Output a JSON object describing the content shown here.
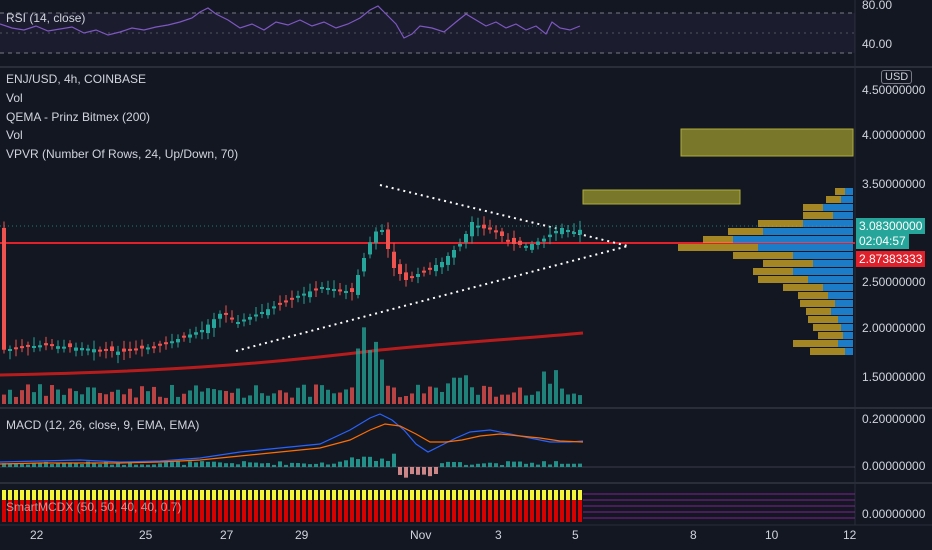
{
  "rsi": {
    "label": "RSI (14, close)",
    "scale": [
      "80.00",
      "40.00"
    ]
  },
  "main": {
    "symbol_line": "ENJ/USD, 4h, COINBASE",
    "indicators": [
      "Vol",
      "QEMA - Prinz Bitmex (200)",
      "Vol",
      "VPVR (Number Of Rows, 24, Up/Down, 70)"
    ],
    "currency_button": "USD",
    "price_scale": [
      "4.50000000",
      "4.00000000",
      "3.50000000",
      "2.50000000",
      "2.00000000",
      "1.50000000"
    ],
    "last_price": "3.08300000",
    "countdown": "02:04:57",
    "line_price": "2.87383333"
  },
  "macd": {
    "label": "MACD (12, 26, close, 9, EMA, EMA)",
    "scale": [
      "0.20000000",
      "0.00000000"
    ]
  },
  "smi": {
    "label": "SmartMCDX (50, 50, 40, 40, 0.7)",
    "scale": [
      "0.00000000"
    ]
  },
  "time_axis": [
    "22",
    "25",
    "27",
    "29",
    "Nov",
    "3",
    "5",
    "8",
    "10",
    "12"
  ],
  "colors": {
    "bg": "#131722",
    "up": "#26a69a",
    "down": "#ef5350",
    "red_line": "#e0202a",
    "ema": "#b71c1c",
    "rsi": "#7e57c2",
    "macd": "#2962ff",
    "signal": "#ff6d00",
    "vpvr_up": "#2196f3",
    "vpvr_down": "#c9a227",
    "gold_box": "#8c8a2c"
  }
}
